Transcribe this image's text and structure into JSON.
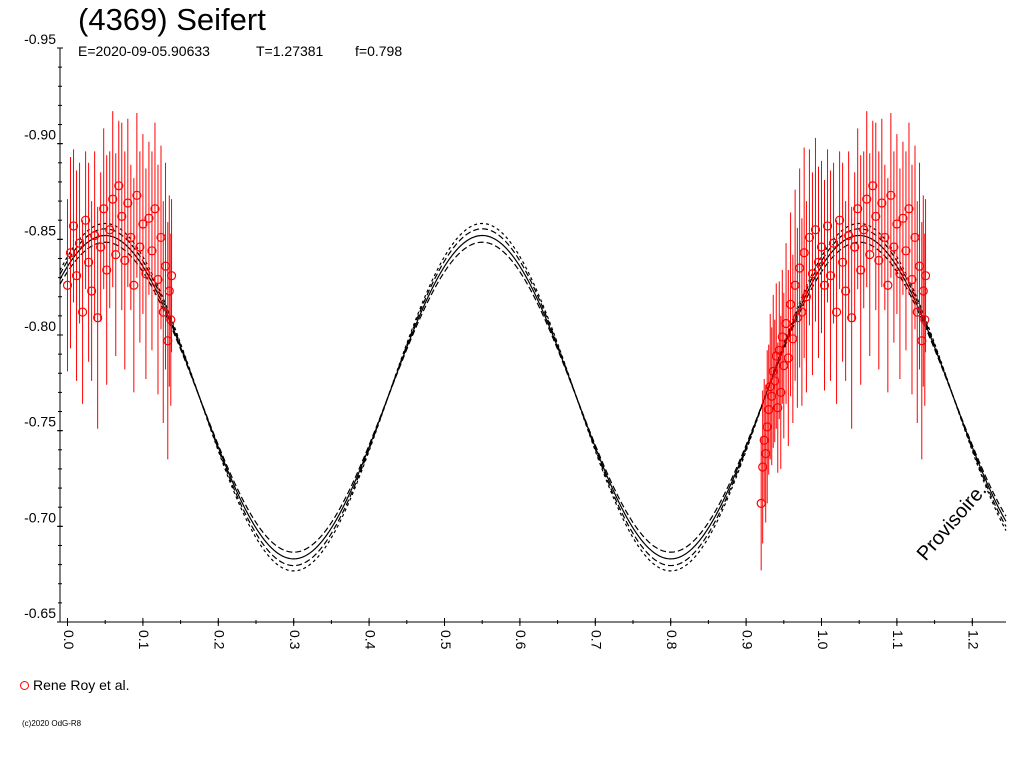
{
  "chart_data": {
    "type": "scatter",
    "title": "(4369) Seifert",
    "subtitle": {
      "epoch": "E=2020-09-05.90633",
      "period": "T=1.27381",
      "f": "f=0.798"
    },
    "xlabel": "",
    "ylabel": "",
    "xlim": [
      -0.01,
      1.25
    ],
    "ylim": [
      -0.95,
      -0.65
    ],
    "y_inverted": true,
    "grid": false,
    "legend_placement": "bottom-left",
    "x_ticks": [
      "0.0",
      "0.1",
      "0.2",
      "0.3",
      "0.4",
      "0.5",
      "0.6",
      "0.7",
      "0.8",
      "0.9",
      "1.0",
      "1.1",
      "1.2"
    ],
    "y_ticks": [
      "-0.95",
      "-0.90",
      "-0.85",
      "-0.80",
      "-0.75",
      "-0.70",
      "-0.65"
    ],
    "model_curve": {
      "description": "Fourier fit with upper and lower envelopes",
      "mean": -0.7675,
      "amplitude": 0.0845,
      "max_phase": 0.55,
      "envelope_spread": 0.0035
    },
    "series": [
      {
        "name": "Rene Roy et al.",
        "color": "#ff0000",
        "marker": "open-circle",
        "points": [
          [
            0.0,
            -0.826,
            0.045
          ],
          [
            0.004,
            -0.843,
            0.05
          ],
          [
            0.008,
            -0.857,
            0.04
          ],
          [
            0.012,
            -0.831,
            0.055
          ],
          [
            0.016,
            -0.848,
            0.042
          ],
          [
            0.02,
            -0.812,
            0.048
          ],
          [
            0.024,
            -0.86,
            0.036
          ],
          [
            0.028,
            -0.838,
            0.052
          ],
          [
            0.032,
            -0.823,
            0.047
          ],
          [
            0.036,
            -0.852,
            0.044
          ],
          [
            0.04,
            -0.809,
            0.058
          ],
          [
            0.044,
            -0.846,
            0.039
          ],
          [
            0.048,
            -0.866,
            0.042
          ],
          [
            0.052,
            -0.834,
            0.06
          ],
          [
            0.056,
            -0.855,
            0.041
          ],
          [
            0.06,
            -0.871,
            0.046
          ],
          [
            0.064,
            -0.842,
            0.053
          ],
          [
            0.068,
            -0.878,
            0.034
          ],
          [
            0.072,
            -0.862,
            0.049
          ],
          [
            0.076,
            -0.839,
            0.057
          ],
          [
            0.08,
            -0.869,
            0.044
          ],
          [
            0.084,
            -0.851,
            0.038
          ],
          [
            0.088,
            -0.826,
            0.056
          ],
          [
            0.092,
            -0.873,
            0.043
          ],
          [
            0.096,
            -0.846,
            0.05
          ],
          [
            0.1,
            -0.858,
            0.047
          ],
          [
            0.104,
            -0.832,
            0.055
          ],
          [
            0.108,
            -0.861,
            0.04
          ],
          [
            0.112,
            -0.844,
            0.052
          ],
          [
            0.116,
            -0.866,
            0.045
          ],
          [
            0.12,
            -0.829,
            0.06
          ],
          [
            0.124,
            -0.851,
            0.048
          ],
          [
            0.127,
            -0.812,
            0.058
          ],
          [
            0.13,
            -0.836,
            0.054
          ],
          [
            0.133,
            -0.797,
            0.062
          ],
          [
            0.135,
            -0.823,
            0.05
          ],
          [
            0.137,
            -0.808,
            0.045
          ],
          [
            0.138,
            -0.831,
            0.04
          ],
          [
            0.92,
            -0.712,
            0.035
          ],
          [
            0.922,
            -0.731,
            0.04
          ],
          [
            0.924,
            -0.745,
            0.032
          ],
          [
            0.926,
            -0.738,
            0.036
          ],
          [
            0.928,
            -0.752,
            0.04
          ],
          [
            0.93,
            -0.761,
            0.034
          ],
          [
            0.932,
            -0.773,
            0.038
          ],
          [
            0.934,
            -0.768,
            0.036
          ],
          [
            0.936,
            -0.781,
            0.04
          ],
          [
            0.938,
            -0.776,
            0.032
          ],
          [
            0.94,
            -0.789,
            0.038
          ],
          [
            0.942,
            -0.762,
            0.034
          ],
          [
            0.944,
            -0.792,
            0.036
          ],
          [
            0.946,
            -0.77,
            0.04
          ],
          [
            0.948,
            -0.799,
            0.035
          ],
          [
            0.95,
            -0.784,
            0.038
          ],
          [
            0.953,
            -0.806,
            0.042
          ],
          [
            0.956,
            -0.788,
            0.046
          ],
          [
            0.959,
            -0.816,
            0.048
          ],
          [
            0.962,
            -0.798,
            0.044
          ],
          [
            0.965,
            -0.826,
            0.05
          ],
          [
            0.968,
            -0.809,
            0.047
          ],
          [
            0.971,
            -0.835,
            0.052
          ],
          [
            0.974,
            -0.812,
            0.049
          ],
          [
            0.977,
            -0.843,
            0.055
          ],
          [
            0.98,
            -0.82,
            0.05
          ],
          [
            0.984,
            -0.851,
            0.046
          ],
          [
            0.988,
            -0.832,
            0.053
          ],
          [
            0.992,
            -0.855,
            0.048
          ],
          [
            0.996,
            -0.838,
            0.05
          ],
          [
            1.0,
            -0.846,
            0.045
          ],
          [
            1.004,
            -0.826,
            0.055
          ],
          [
            1.008,
            -0.857,
            0.04
          ],
          [
            1.012,
            -0.831,
            0.055
          ],
          [
            1.016,
            -0.848,
            0.042
          ],
          [
            1.02,
            -0.812,
            0.048
          ],
          [
            1.024,
            -0.86,
            0.036
          ],
          [
            1.028,
            -0.838,
            0.052
          ],
          [
            1.032,
            -0.823,
            0.047
          ],
          [
            1.036,
            -0.852,
            0.044
          ],
          [
            1.04,
            -0.809,
            0.058
          ],
          [
            1.044,
            -0.846,
            0.039
          ],
          [
            1.048,
            -0.866,
            0.042
          ],
          [
            1.052,
            -0.834,
            0.06
          ],
          [
            1.056,
            -0.855,
            0.041
          ],
          [
            1.06,
            -0.871,
            0.046
          ],
          [
            1.064,
            -0.842,
            0.053
          ],
          [
            1.068,
            -0.878,
            0.034
          ],
          [
            1.072,
            -0.862,
            0.049
          ],
          [
            1.076,
            -0.839,
            0.057
          ],
          [
            1.08,
            -0.869,
            0.044
          ],
          [
            1.084,
            -0.851,
            0.038
          ],
          [
            1.088,
            -0.826,
            0.056
          ],
          [
            1.092,
            -0.873,
            0.043
          ],
          [
            1.096,
            -0.846,
            0.05
          ],
          [
            1.1,
            -0.858,
            0.047
          ],
          [
            1.104,
            -0.832,
            0.055
          ],
          [
            1.108,
            -0.861,
            0.04
          ],
          [
            1.112,
            -0.844,
            0.052
          ],
          [
            1.116,
            -0.866,
            0.045
          ],
          [
            1.12,
            -0.829,
            0.06
          ],
          [
            1.124,
            -0.851,
            0.048
          ],
          [
            1.127,
            -0.812,
            0.058
          ],
          [
            1.13,
            -0.836,
            0.054
          ],
          [
            1.133,
            -0.797,
            0.062
          ],
          [
            1.135,
            -0.823,
            0.05
          ],
          [
            1.137,
            -0.808,
            0.045
          ],
          [
            1.138,
            -0.831,
            0.04
          ]
        ]
      }
    ]
  },
  "watermark": "Provisoire.",
  "copyright": "(c)2020 OdG-R8"
}
